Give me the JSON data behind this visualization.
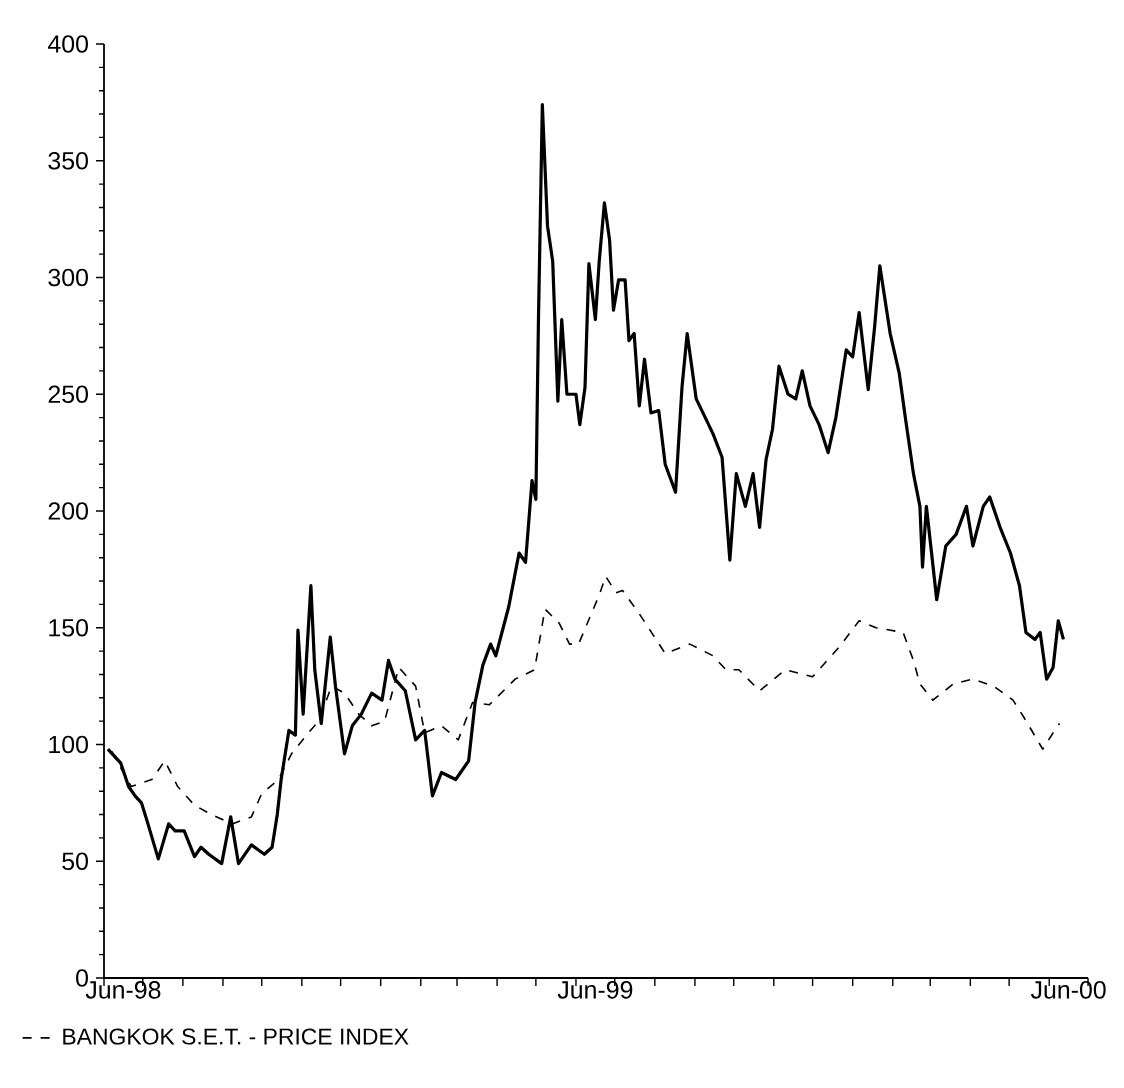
{
  "chart_data": {
    "type": "line",
    "xlim": [
      "1998-06-01",
      "2000-07-01"
    ],
    "ylim": [
      0,
      400
    ],
    "xticks": [
      {
        "value": "1998-06-01",
        "label": null
      },
      {
        "value": "1998-07-01",
        "label": null
      },
      {
        "value": "1998-08-01",
        "label": null
      },
      {
        "value": "1998-09-01",
        "label": null
      },
      {
        "value": "1998-10-01",
        "label": null
      },
      {
        "value": "1998-11-01",
        "label": null
      },
      {
        "value": "1998-12-01",
        "label": null
      },
      {
        "value": "1999-01-01",
        "label": null
      },
      {
        "value": "1999-02-01",
        "label": null
      },
      {
        "value": "1999-03-01",
        "label": null
      },
      {
        "value": "1999-04-01",
        "label": null
      },
      {
        "value": "1999-05-01",
        "label": null
      },
      {
        "value": "1999-06-01",
        "label": null
      },
      {
        "value": "1999-07-01",
        "label": null
      },
      {
        "value": "1999-08-01",
        "label": null
      },
      {
        "value": "1999-09-01",
        "label": null
      },
      {
        "value": "1999-10-01",
        "label": null
      },
      {
        "value": "1999-11-01",
        "label": null
      },
      {
        "value": "1999-12-01",
        "label": null
      },
      {
        "value": "2000-01-01",
        "label": null
      },
      {
        "value": "2000-02-01",
        "label": null
      },
      {
        "value": "2000-03-01",
        "label": null
      },
      {
        "value": "2000-04-01",
        "label": null
      },
      {
        "value": "2000-05-01",
        "label": null
      },
      {
        "value": "2000-06-01",
        "label": null
      },
      {
        "value": "2000-07-01",
        "label": null
      },
      {
        "value": "1998-06-16",
        "label": "Jun-98"
      },
      {
        "value": "1999-06-16",
        "label": "Jun-99"
      },
      {
        "value": "2000-06-16",
        "label": "Jun-00"
      }
    ],
    "yticks": [
      0,
      50,
      100,
      150,
      200,
      250,
      300,
      350,
      400,
      {
        "value": 10,
        "label": null
      },
      {
        "value": 20,
        "label": null
      },
      {
        "value": 30,
        "label": null
      },
      {
        "value": 40,
        "label": null
      },
      {
        "value": 60,
        "label": null
      },
      {
        "value": 70,
        "label": null
      },
      {
        "value": 80,
        "label": null
      },
      {
        "value": 90,
        "label": null
      },
      {
        "value": 110,
        "label": null
      },
      {
        "value": 120,
        "label": null
      },
      {
        "value": 130,
        "label": null
      },
      {
        "value": 140,
        "label": null
      },
      {
        "value": 160,
        "label": null
      },
      {
        "value": 170,
        "label": null
      },
      {
        "value": 180,
        "label": null
      },
      {
        "value": 190,
        "label": null
      },
      {
        "value": 210,
        "label": null
      },
      {
        "value": 220,
        "label": null
      },
      {
        "value": 230,
        "label": null
      },
      {
        "value": 240,
        "label": null
      },
      {
        "value": 260,
        "label": null
      },
      {
        "value": 270,
        "label": null
      },
      {
        "value": 280,
        "label": null
      },
      {
        "value": 290,
        "label": null
      },
      {
        "value": 310,
        "label": null
      },
      {
        "value": 320,
        "label": null
      },
      {
        "value": 330,
        "label": null
      },
      {
        "value": 340,
        "label": null
      },
      {
        "value": 360,
        "label": null
      },
      {
        "value": 370,
        "label": null
      },
      {
        "value": 380,
        "label": null
      },
      {
        "value": 390,
        "label": null
      }
    ],
    "grid": false,
    "legend": "bottom",
    "marker": "none",
    "series": [
      {
        "name": "BANGKOK S.E.T. - PRICE INDEX",
        "color": "#000000",
        "line_style": "dashed",
        "x": [
          "1998-06-07",
          "1998-06-22",
          "1998-07-08",
          "1998-07-18",
          "1998-07-28",
          "1998-08-10",
          "1998-08-23",
          "1998-09-08",
          "1998-09-23",
          "1998-10-01",
          "1998-10-14",
          "1998-10-24",
          "1998-11-06",
          "1998-11-14",
          "1998-11-24",
          "1998-12-04",
          "1998-12-15",
          "1998-12-25",
          "1999-01-04",
          "1999-01-15",
          "1999-01-28",
          "1999-02-04",
          "1999-02-17",
          "1999-03-02",
          "1999-03-13",
          "1999-03-26",
          "1999-04-15",
          "1999-04-30",
          "1999-05-08",
          "1999-05-19",
          "1999-05-27",
          "1999-06-03",
          "1999-06-19",
          "1999-06-24",
          "1999-07-02",
          "1999-07-07",
          "1999-07-20",
          "1999-08-09",
          "1999-08-28",
          "1999-09-15",
          "1999-09-25",
          "1999-10-05",
          "1999-10-21",
          "1999-11-10",
          "1999-12-01",
          "1999-12-22",
          "2000-01-06",
          "2000-01-19",
          "2000-02-09",
          "2000-02-17",
          "2000-02-22",
          "2000-03-03",
          "2000-03-19",
          "2000-04-03",
          "2000-04-19",
          "2000-05-04",
          "2000-05-12",
          "2000-05-27",
          "2000-06-04",
          "2000-06-09"
        ],
        "values": [
          97,
          82,
          85,
          93,
          82,
          74,
          70,
          66,
          69,
          79,
          85,
          96,
          105,
          110,
          125,
          122,
          113,
          108,
          110,
          133,
          125,
          105,
          108,
          102,
          118,
          117,
          128,
          132,
          158,
          152,
          143,
          143,
          164,
          172,
          165,
          166,
          156,
          139,
          143,
          138,
          132,
          132,
          123,
          132,
          129,
          142,
          153,
          150,
          148,
          136,
          126,
          119,
          126,
          128,
          125,
          119,
          112,
          98,
          105,
          109
        ]
      },
      {
        "color": "#000000",
        "line_style": "solid",
        "x": [
          "1998-06-04",
          "1998-06-14",
          "1998-06-20",
          "1998-06-25",
          "1998-06-30",
          "1998-07-05",
          "1998-07-13",
          "1998-07-21",
          "1998-07-26",
          "1998-08-02",
          "1998-08-10",
          "1998-08-15",
          "1998-08-21",
          "1998-08-31",
          "1998-09-07",
          "1998-09-13",
          "1998-09-23",
          "1998-10-03",
          "1998-10-09",
          "1998-10-13",
          "1998-10-16",
          "1998-10-22",
          "1998-10-27",
          "1998-10-29",
          "1998-11-02",
          "1998-11-08",
          "1998-11-11",
          "1998-11-16",
          "1998-11-23",
          "1998-11-27",
          "1998-12-04",
          "1998-12-10",
          "1998-12-17",
          "1998-12-25",
          "1999-01-02",
          "1999-01-07",
          "1999-01-12",
          "1999-01-20",
          "1999-01-28",
          "1999-02-04",
          "1999-02-10",
          "1999-02-17",
          "1999-02-28",
          "1999-03-10",
          "1999-03-15",
          "1999-03-21",
          "1999-03-27",
          "1999-03-31",
          "1999-04-10",
          "1999-04-18",
          "1999-04-23",
          "1999-04-28",
          "1999-05-01",
          "1999-05-03",
          "1999-05-06",
          "1999-05-10",
          "1999-05-14",
          "1999-05-18",
          "1999-05-21",
          "1999-05-25",
          "1999-06-01",
          "1999-06-04",
          "1999-06-08",
          "1999-06-11",
          "1999-06-16",
          "1999-06-19",
          "1999-06-23",
          "1999-06-27",
          "1999-06-30",
          "1999-07-04",
          "1999-07-09",
          "1999-07-12",
          "1999-07-16",
          "1999-07-20",
          "1999-07-24",
          "1999-07-29",
          "1999-08-04",
          "1999-08-09",
          "1999-08-17",
          "1999-08-22",
          "1999-08-26",
          "1999-09-02",
          "1999-09-09",
          "1999-09-15",
          "1999-09-22",
          "1999-09-28",
          "1999-10-03",
          "1999-10-10",
          "1999-10-16",
          "1999-10-21",
          "1999-10-26",
          "1999-10-31",
          "1999-11-05",
          "1999-11-12",
          "1999-11-18",
          "1999-11-23",
          "1999-11-29",
          "1999-12-06",
          "1999-12-13",
          "1999-12-19",
          "1999-12-27",
          "2000-01-01",
          "2000-01-06",
          "2000-01-13",
          "2000-01-18",
          "2000-01-22",
          "2000-01-30",
          "2000-02-06",
          "2000-02-11",
          "2000-02-17",
          "2000-02-22",
          "2000-02-24",
          "2000-02-27",
          "2000-03-06",
          "2000-03-13",
          "2000-03-21",
          "2000-03-29",
          "2000-04-03",
          "2000-04-11",
          "2000-04-16",
          "2000-04-24",
          "2000-05-02",
          "2000-05-09",
          "2000-05-14",
          "2000-05-21",
          "2000-05-25",
          "2000-05-30",
          "2000-06-04",
          "2000-06-08",
          "2000-06-12"
        ],
        "values": [
          98,
          92,
          82,
          78,
          75,
          66,
          51,
          66,
          63,
          63,
          52,
          56,
          53,
          49,
          69,
          49,
          57,
          53,
          56,
          70,
          85,
          106,
          104,
          149,
          113,
          168,
          132,
          109,
          146,
          125,
          96,
          108,
          113,
          122,
          119,
          136,
          128,
          123,
          102,
          106,
          78,
          88,
          85,
          93,
          118,
          134,
          143,
          138,
          159,
          182,
          178,
          213,
          205,
          282,
          374,
          322,
          307,
          247,
          282,
          250,
          250,
          237,
          253,
          306,
          282,
          307,
          332,
          316,
          286,
          299,
          299,
          273,
          276,
          245,
          265,
          242,
          243,
          220,
          208,
          253,
          276,
          248,
          240,
          233,
          223,
          179,
          216,
          202,
          216,
          193,
          222,
          235,
          262,
          250,
          248,
          260,
          245,
          237,
          225,
          240,
          269,
          266,
          285,
          252,
          279,
          305,
          276,
          259,
          239,
          216,
          202,
          176,
          202,
          162,
          185,
          190,
          202,
          185,
          202,
          206,
          193,
          182,
          168,
          148,
          145,
          148,
          128,
          133,
          153,
          145
        ]
      }
    ]
  }
}
